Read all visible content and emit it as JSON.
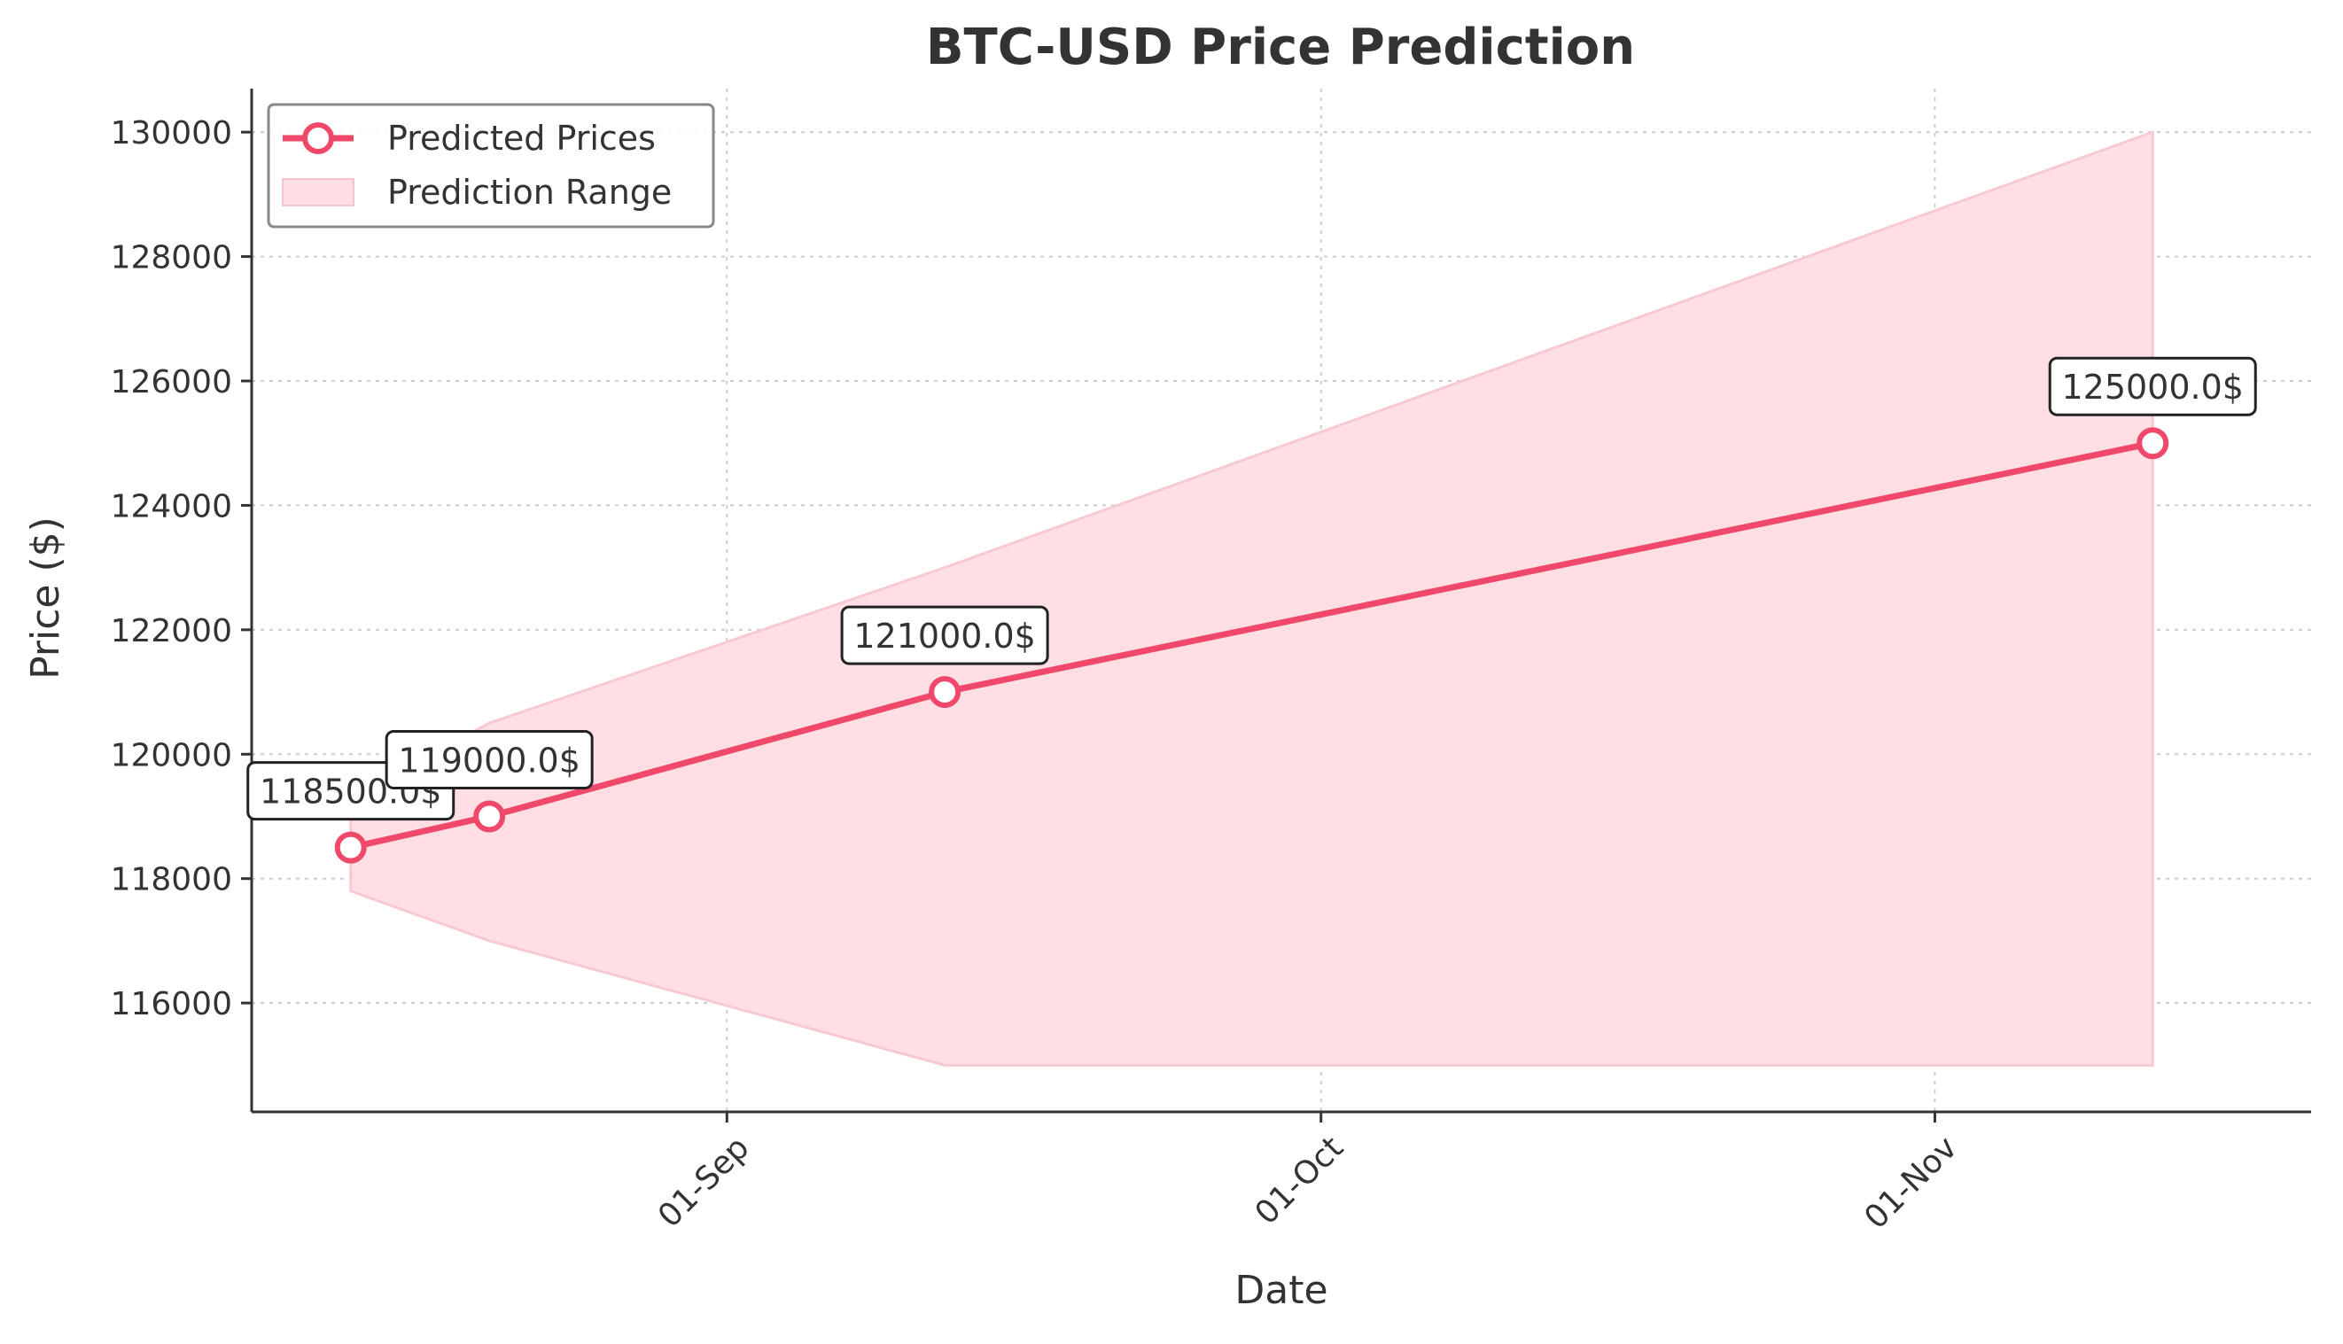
{
  "chart_data": {
    "type": "line",
    "title": "BTC-USD Price Prediction",
    "xlabel": "Date",
    "ylabel": "Price ($)",
    "x_tick_labels": [
      "01-Sep",
      "01-Oct",
      "01-Nov"
    ],
    "x_tick_dates": [
      "2025-09-01",
      "2025-10-01",
      "2025-11-01"
    ],
    "y_ticks": [
      116000,
      118000,
      120000,
      122000,
      124000,
      126000,
      128000,
      130000
    ],
    "xlim": [
      "2025-08-08",
      "2025-11-20"
    ],
    "ylim": [
      114250,
      130700
    ],
    "grid": true,
    "legend_position": "top-left",
    "series": [
      {
        "name": "Predicted Prices",
        "color": "#f0486a",
        "x": [
          "2025-08-13",
          "2025-08-20",
          "2025-09-12",
          "2025-11-12"
        ],
        "values": [
          118500,
          119000,
          121000,
          125000
        ],
        "labels": [
          "118500.0$",
          "119000.0$",
          "121000.0$",
          "125000.0$"
        ]
      }
    ],
    "range": {
      "name": "Prediction Range",
      "color": "#ffdde3",
      "x": [
        "2025-08-13",
        "2025-08-20",
        "2025-09-12",
        "2025-11-12"
      ],
      "lower": [
        117800,
        117000,
        115000,
        115000
      ],
      "upper": [
        119300,
        120500,
        123000,
        130000
      ]
    }
  }
}
